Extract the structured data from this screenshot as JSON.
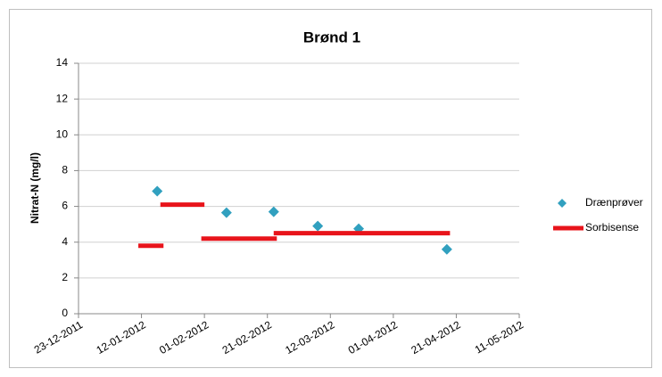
{
  "chart_data": {
    "type": "scatter",
    "title": "Brønd 1",
    "y_label": "Nitrat-N (mg/l)",
    "xlim": [
      "23-12-2011",
      "11-05-2012"
    ],
    "xticks": [
      "23-12-2011",
      "12-01-2012",
      "01-02-2012",
      "21-02-2012",
      "12-03-2012",
      "01-04-2012",
      "21-04-2012",
      "11-05-2012"
    ],
    "ylim": [
      0,
      14
    ],
    "yticks": [
      0,
      2,
      4,
      6,
      8,
      10,
      12,
      14
    ],
    "grid": true,
    "legend": "right",
    "series": [
      {
        "name": "Drænprøver",
        "color": "#31a0bf",
        "x": [
          "17-01-2012",
          "08-02-2012",
          "23-02-2012",
          "08-03-2012",
          "21-03-2012",
          "18-04-2012"
        ],
        "values": [
          6.85,
          5.65,
          5.7,
          4.9,
          4.75,
          3.6
        ]
      },
      {
        "name": "Sorbisense",
        "color": "#e8141b",
        "x_start": [
          "11-01-2012",
          "18-01-2012",
          "31-01-2012",
          "23-02-2012"
        ],
        "x_end": [
          "19-01-2012",
          "01-02-2012",
          "24-02-2012",
          "19-04-2012"
        ],
        "values": [
          3.8,
          6.1,
          4.2,
          4.5
        ]
      }
    ]
  }
}
